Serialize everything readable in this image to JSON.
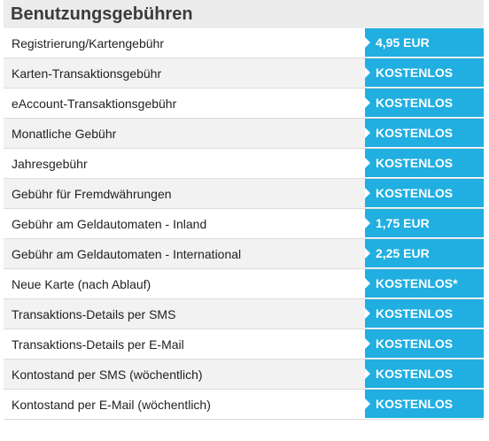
{
  "colors": {
    "accent": "#21aee0",
    "header_bg": "#ececec",
    "row_alt_bg": "#f2f2f2"
  },
  "header": {
    "title": "Benutzungsgebühren"
  },
  "fees": [
    {
      "label": "Registrierung/Kartengebühr",
      "value": "4,95 EUR"
    },
    {
      "label": "Karten-Transaktionsgebühr",
      "value": "KOSTENLOS"
    },
    {
      "label": "eAccount-Transaktionsgebühr",
      "value": "KOSTENLOS"
    },
    {
      "label": "Monatliche Gebühr",
      "value": "KOSTENLOS"
    },
    {
      "label": "Jahresgebühr",
      "value": "KOSTENLOS"
    },
    {
      "label": "Gebühr für Fremdwährungen",
      "value": "KOSTENLOS"
    },
    {
      "label": "Gebühr am Geldautomaten - Inland",
      "value": "1,75 EUR"
    },
    {
      "label": "Gebühr am Geldautomaten - International",
      "value": "2,25 EUR"
    },
    {
      "label": "Neue Karte (nach Ablauf)",
      "value": "KOSTENLOS*"
    },
    {
      "label": "Transaktions-Details per SMS",
      "value": "KOSTENLOS"
    },
    {
      "label": "Transaktions-Details per E-Mail",
      "value": "KOSTENLOS"
    },
    {
      "label": "Kontostand per SMS (wöchentlich)",
      "value": "KOSTENLOS"
    },
    {
      "label": "Kontostand per E-Mail (wöchentlich)",
      "value": "KOSTENLOS"
    }
  ]
}
